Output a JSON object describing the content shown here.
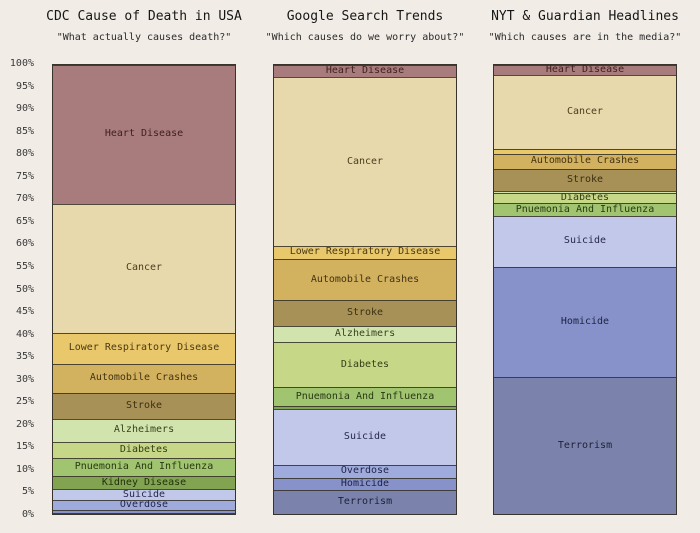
{
  "figure": {
    "background_color": "#f1ece6",
    "segment_border_color": "#38342b"
  },
  "chart_data": {
    "type": "bar",
    "variant": "100%-stacked-columns",
    "grid": false,
    "legend": "none (labels inside segments)",
    "ylim": [
      0,
      100
    ],
    "y_tick_labels": [
      "100%",
      "95%",
      "90%",
      "85%",
      "80%",
      "75%",
      "70%",
      "65%",
      "60%",
      "55%",
      "50%",
      "45%",
      "40%",
      "35%",
      "30%",
      "25%",
      "20%",
      "15%",
      "10%",
      "5%",
      "0%"
    ],
    "segments": [
      "Heart Disease",
      "Cancer",
      "Lower Respiratory Disease",
      "Automobile Crashes",
      "Stroke",
      "Alzheimers",
      "Diabetes",
      "Pnuemonia And Influenza",
      "Kidney Disease",
      "Suicide",
      "Overdose",
      "Homicide",
      "Terrorism"
    ],
    "colors": [
      "#a87c7c",
      "#e8d9ac",
      "#e9c76b",
      "#d2b15f",
      "#a89157",
      "#d2e4ae",
      "#c6d788",
      "#a0c470",
      "#82a450",
      "#c2c8e9",
      "#a0abdd",
      "#8792cb",
      "#7b83ac"
    ],
    "label_colors": [
      "#402020",
      "#4a3d1e",
      "#4a3a14",
      "#433312",
      "#3a2f12",
      "#36421c",
      "#333f14",
      "#2a3a12",
      "#22300e",
      "#26284a",
      "#222647",
      "#1e2240",
      "#1c2038"
    ],
    "charts": [
      {
        "title": "CDC Cause of Death in USA",
        "subtitle": "\"What actually causes death?\"",
        "values": [
          30.9,
          28.7,
          6.9,
          6.5,
          5.8,
          5.1,
          3.6,
          4.0,
          3.0,
          2.4,
          2.2,
          0.8,
          0.1
        ]
      },
      {
        "title": "Google Search Trends",
        "subtitle": "\"Which causes do we worry about?\"",
        "values": [
          2.7,
          37.6,
          2.9,
          9.2,
          5.8,
          3.6,
          10.0,
          4.2,
          0.7,
          12.5,
          2.7,
          2.7,
          5.4
        ]
      },
      {
        "title": "NYT & Guardian Headlines",
        "subtitle": "\"Which causes are in the media?\"",
        "values": [
          2.2,
          16.5,
          1.1,
          3.3,
          4.9,
          0.6,
          2.2,
          2.9,
          0.0,
          11.2,
          0.0,
          24.7,
          30.4
        ]
      }
    ]
  }
}
